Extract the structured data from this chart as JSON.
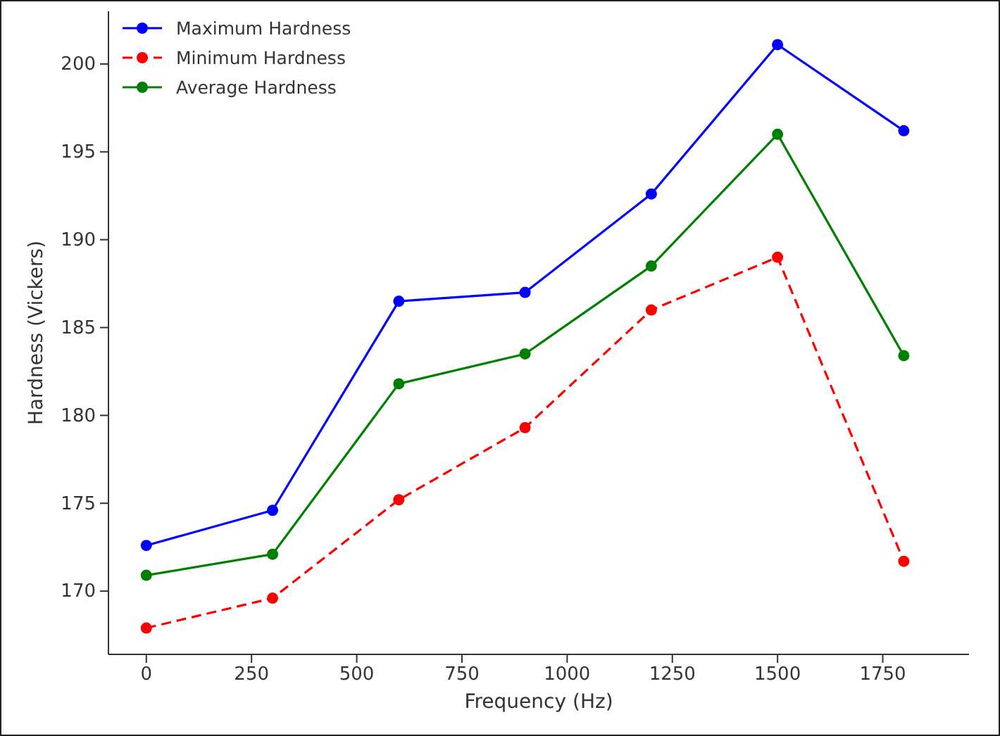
{
  "chart_data": {
    "type": "line",
    "xlabel": "Frequency (Hz)",
    "ylabel": "Hardness (Vickers)",
    "x": [
      0,
      300,
      600,
      900,
      1200,
      1500,
      1800
    ],
    "xlim": [
      -90,
      1955
    ],
    "xticks": [
      0,
      250,
      500,
      750,
      1000,
      1250,
      1500,
      1750
    ],
    "ylim": [
      166.4,
      203
    ],
    "yticks": [
      170,
      175,
      180,
      185,
      190,
      195,
      200
    ],
    "marker": "circle",
    "grid": false,
    "legend": "top left",
    "series": [
      {
        "name": "Maximum Hardness",
        "color": "#0000ff",
        "line_style": "solid",
        "values": [
          172.6,
          174.6,
          186.5,
          187.0,
          192.6,
          201.1,
          196.2
        ]
      },
      {
        "name": "Minimum Hardness",
        "color": "#ff0000",
        "line_style": "dashed",
        "values": [
          167.9,
          169.6,
          175.2,
          179.3,
          186.0,
          189.0,
          171.7
        ]
      },
      {
        "name": "Average Hardness",
        "color": "#008000",
        "line_style": "solid",
        "values": [
          170.9,
          172.1,
          181.8,
          183.5,
          188.5,
          196.0,
          183.4
        ]
      }
    ]
  }
}
